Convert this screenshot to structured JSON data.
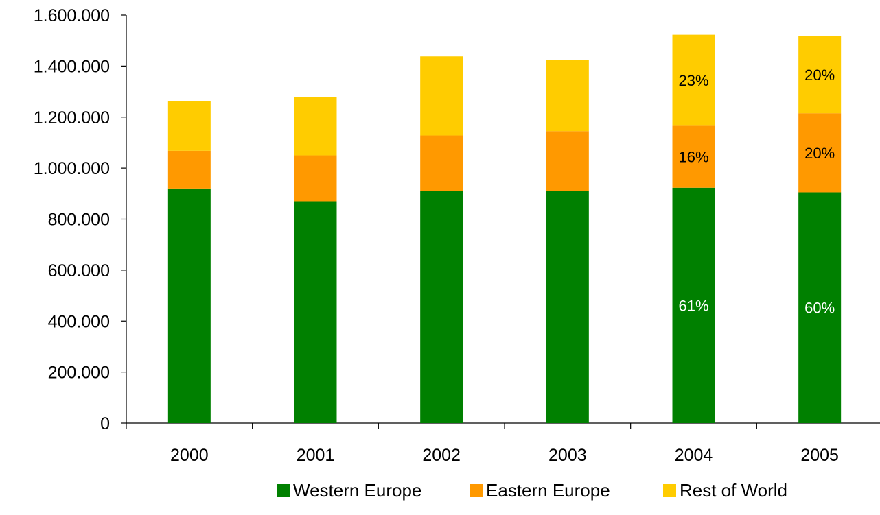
{
  "chart_data": {
    "type": "bar",
    "stacked": true,
    "categories": [
      "2000",
      "2001",
      "2002",
      "2003",
      "2004",
      "2005"
    ],
    "series": [
      {
        "name": "Western Europe",
        "color": "#008000",
        "values": [
          920000,
          870000,
          910000,
          910000,
          923000,
          905000
        ],
        "labels": [
          "",
          "",
          "",
          "",
          "61%",
          "60%"
        ],
        "label_color": "#ffffff"
      },
      {
        "name": "Eastern Europe",
        "color": "#FF9900",
        "values": [
          148000,
          180000,
          218000,
          235000,
          243000,
          310000
        ],
        "labels": [
          "",
          "",
          "",
          "",
          "16%",
          "20%"
        ],
        "label_color": "#000000"
      },
      {
        "name": "Rest of World",
        "color": "#FFCC00",
        "values": [
          195000,
          230000,
          310000,
          280000,
          357000,
          302000
        ],
        "labels": [
          "",
          "",
          "",
          "",
          "23%",
          "20%"
        ],
        "label_color": "#000000"
      }
    ],
    "ylim": [
      0,
      1600000
    ],
    "yticks": [
      0,
      200000,
      400000,
      600000,
      800000,
      1000000,
      1200000,
      1400000,
      1600000
    ],
    "ytick_labels": [
      "0",
      "200.000",
      "400.000",
      "600.000",
      "800.000",
      "1.000.000",
      "1.200.000",
      "1.400.000",
      "1.600.000"
    ],
    "title": "",
    "xlabel": "",
    "ylabel": "",
    "grid": false,
    "legend_position": "bottom"
  }
}
